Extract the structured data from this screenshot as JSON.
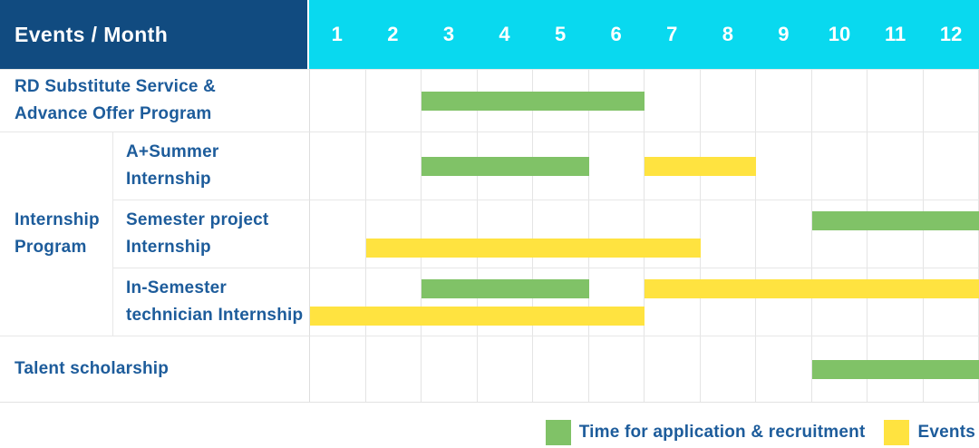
{
  "header": {
    "title": "Events / Month",
    "months": [
      "1",
      "2",
      "3",
      "4",
      "5",
      "6",
      "7",
      "8",
      "9",
      "10",
      "11",
      "12"
    ]
  },
  "colors": {
    "navy": "#114b80",
    "cyan": "#09d9ef",
    "green": "#80c267",
    "yellow": "#ffe340",
    "label_blue": "#1d5c9b"
  },
  "group": {
    "label_lines": [
      "Internship",
      "Program"
    ]
  },
  "rows": [
    {
      "name": "rd-substitute-service",
      "label_lines": [
        "RD Substitute Service &",
        "Advance Offer Program"
      ],
      "in_group": false,
      "bar_lines": [
        [
          {
            "series": "Time for application & recruitment",
            "color_key": "green",
            "start_month": 3,
            "end_month": 6
          }
        ]
      ]
    },
    {
      "name": "a-plus-summer-internship",
      "label_lines": [
        "A+Summer",
        "Internship"
      ],
      "in_group": true,
      "bar_lines": [
        [
          {
            "series": "Time for application & recruitment",
            "color_key": "green",
            "start_month": 3,
            "end_month": 5
          },
          {
            "series": "Events",
            "color_key": "yellow",
            "start_month": 7,
            "end_month": 8
          }
        ]
      ]
    },
    {
      "name": "semester-project-internship",
      "label_lines": [
        "Semester project",
        "Internship"
      ],
      "in_group": true,
      "bar_lines": [
        [
          {
            "series": "Time for application & recruitment",
            "color_key": "green",
            "start_month": 10,
            "end_month": 12
          }
        ],
        [
          {
            "series": "Events",
            "color_key": "yellow",
            "start_month": 2,
            "end_month": 7
          }
        ]
      ]
    },
    {
      "name": "in-semester-technician-internship",
      "label_lines": [
        "In-Semester",
        "technician Internship"
      ],
      "in_group": true,
      "bar_lines": [
        [
          {
            "series": "Time for application & recruitment",
            "color_key": "green",
            "start_month": 3,
            "end_month": 5
          },
          {
            "series": "Events",
            "color_key": "yellow",
            "start_month": 7,
            "end_month": 12
          }
        ],
        [
          {
            "series": "Events",
            "color_key": "yellow",
            "start_month": 1,
            "end_month": 6
          }
        ]
      ]
    },
    {
      "name": "talent-scholarship",
      "label_lines": [
        "Talent scholarship"
      ],
      "in_group": false,
      "bar_lines": [
        [
          {
            "series": "Time for application & recruitment",
            "color_key": "green",
            "start_month": 10,
            "end_month": 12
          }
        ]
      ]
    }
  ],
  "legend": [
    {
      "color_key": "green",
      "label": "Time for application & recruitment"
    },
    {
      "color_key": "yellow",
      "label": "Events"
    }
  ],
  "chart_data": {
    "type": "table",
    "subtype": "gantt",
    "title": "Events / Month",
    "x_ticks": [
      1,
      2,
      3,
      4,
      5,
      6,
      7,
      8,
      9,
      10,
      11,
      12
    ],
    "x_range": [
      1,
      12
    ],
    "legend": [
      {
        "series": "Time for application & recruitment",
        "color": "#80c267"
      },
      {
        "series": "Events",
        "color": "#ffe340"
      }
    ],
    "rows": [
      {
        "event": "RD Substitute Service & Advance Offer Program",
        "group": null,
        "spans": [
          {
            "series": "Time for application & recruitment",
            "months": [
              3,
              6
            ]
          }
        ]
      },
      {
        "event": "A+Summer Internship",
        "group": "Internship Program",
        "spans": [
          {
            "series": "Time for application & recruitment",
            "months": [
              3,
              5
            ]
          },
          {
            "series": "Events",
            "months": [
              7,
              8
            ]
          }
        ]
      },
      {
        "event": "Semester project Internship",
        "group": "Internship Program",
        "spans": [
          {
            "series": "Time for application & recruitment",
            "months": [
              10,
              12
            ]
          },
          {
            "series": "Events",
            "months": [
              2,
              7
            ]
          }
        ]
      },
      {
        "event": "In-Semester technician Internship",
        "group": "Internship Program",
        "spans": [
          {
            "series": "Time for application & recruitment",
            "months": [
              3,
              5
            ]
          },
          {
            "series": "Events",
            "months": [
              7,
              12
            ]
          },
          {
            "series": "Events",
            "months": [
              1,
              6
            ]
          }
        ]
      },
      {
        "event": "Talent scholarship",
        "group": null,
        "spans": [
          {
            "series": "Time for application & recruitment",
            "months": [
              10,
              12
            ]
          }
        ]
      }
    ]
  }
}
